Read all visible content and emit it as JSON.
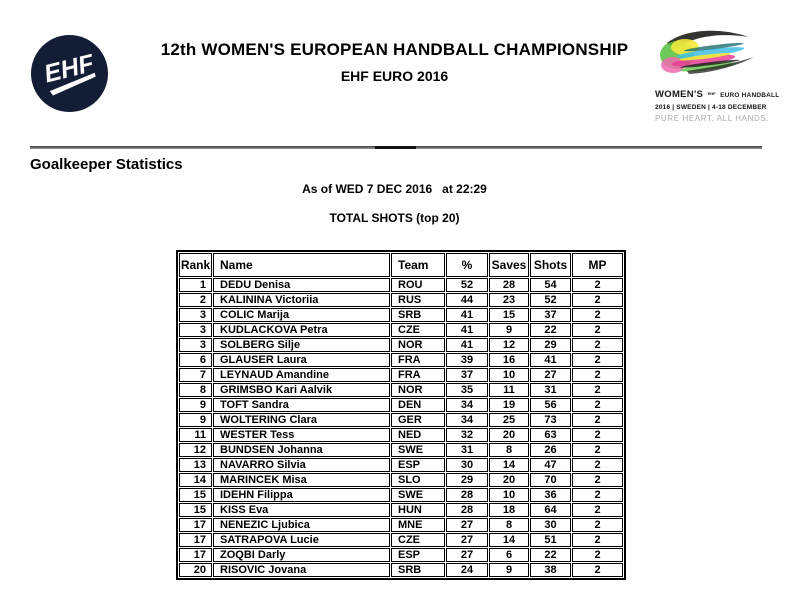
{
  "header": {
    "ehf_logo_text": "EHF",
    "title_line1": "12th WOMEN'S EUROPEAN HANDBALL CHAMPIONSHIP",
    "title_line2": "EHF EURO 2016",
    "event_logo": {
      "brand_women": "WOMEN'S",
      "brand_ehf": "EHF",
      "brand_rest": "EURO HANDBALL",
      "line2": "2016 | SWEDEN | 4-18 DECEMBER",
      "line3": "PURE HEART. ALL HANDS."
    }
  },
  "colors": {
    "ehf_logo_navy": "#131d36",
    "event_logo_palette": [
      "#1d1d1b",
      "#56bf3c",
      "#f2ea3c",
      "#e83e97",
      "#f06aae",
      "#3fc0e8",
      "#1b6e6e"
    ]
  },
  "section": {
    "heading": "Goalkeeper Statistics",
    "as_of": "As of WED 7 DEC 2016   at 22:29",
    "subtitle": "TOTAL SHOTS (top 20)"
  },
  "table": {
    "columns": [
      "Rank",
      "Name",
      "Team",
      "%",
      "Saves",
      "Shots",
      "MP"
    ],
    "rows": [
      [
        "1",
        "DEDU Denisa",
        "ROU",
        "52",
        "28",
        "54",
        "2"
      ],
      [
        "2",
        "KALININA Victoriia",
        "RUS",
        "44",
        "23",
        "52",
        "2"
      ],
      [
        "3",
        "COLIC Marija",
        "SRB",
        "41",
        "15",
        "37",
        "2"
      ],
      [
        "3",
        "KUDLACKOVA Petra",
        "CZE",
        "41",
        "9",
        "22",
        "2"
      ],
      [
        "3",
        "SOLBERG Silje",
        "NOR",
        "41",
        "12",
        "29",
        "2"
      ],
      [
        "6",
        "GLAUSER Laura",
        "FRA",
        "39",
        "16",
        "41",
        "2"
      ],
      [
        "7",
        "LEYNAUD Amandine",
        "FRA",
        "37",
        "10",
        "27",
        "2"
      ],
      [
        "8",
        "GRIMSBO Kari Aalvik",
        "NOR",
        "35",
        "11",
        "31",
        "2"
      ],
      [
        "9",
        "TOFT Sandra",
        "DEN",
        "34",
        "19",
        "56",
        "2"
      ],
      [
        "9",
        "WOLTERING Clara",
        "GER",
        "34",
        "25",
        "73",
        "2"
      ],
      [
        "11",
        "WESTER Tess",
        "NED",
        "32",
        "20",
        "63",
        "2"
      ],
      [
        "12",
        "BUNDSEN Johanna",
        "SWE",
        "31",
        "8",
        "26",
        "2"
      ],
      [
        "13",
        "NAVARRO Silvia",
        "ESP",
        "30",
        "14",
        "47",
        "2"
      ],
      [
        "14",
        "MARINCEK Misa",
        "SLO",
        "29",
        "20",
        "70",
        "2"
      ],
      [
        "15",
        "IDEHN Filippa",
        "SWE",
        "28",
        "10",
        "36",
        "2"
      ],
      [
        "15",
        "KISS Eva",
        "HUN",
        "28",
        "18",
        "64",
        "2"
      ],
      [
        "17",
        "NENEZIC Ljubica",
        "MNE",
        "27",
        "8",
        "30",
        "2"
      ],
      [
        "17",
        "SATRAPOVA Lucie",
        "CZE",
        "27",
        "14",
        "51",
        "2"
      ],
      [
        "17",
        "ZOQBI Darly",
        "ESP",
        "27",
        "6",
        "22",
        "2"
      ],
      [
        "20",
        "RISOVIC Jovana",
        "SRB",
        "24",
        "9",
        "38",
        "2"
      ]
    ],
    "column_keys": [
      "rank",
      "name",
      "team",
      "pct",
      "saves",
      "shots",
      "mp"
    ]
  }
}
